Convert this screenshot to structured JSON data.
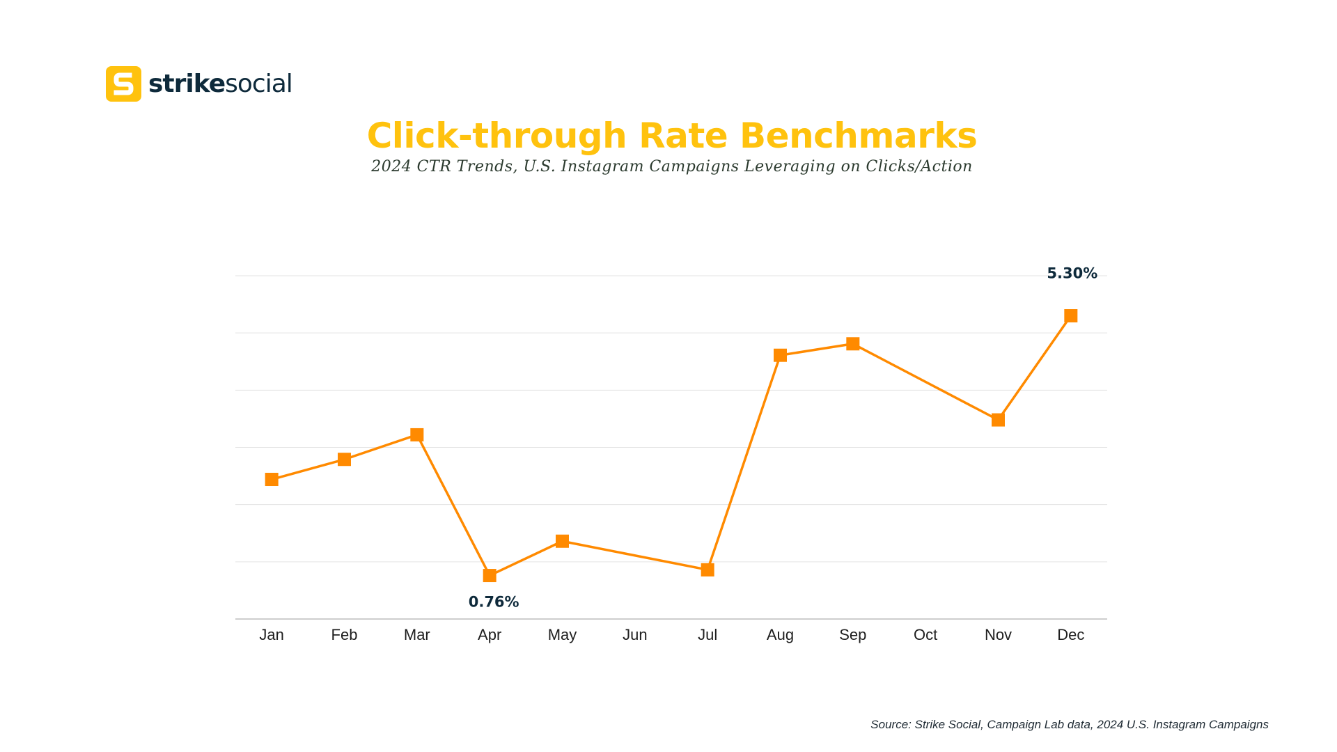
{
  "brand": {
    "name_bold": "strike",
    "name_light": "social",
    "accent_color": "#FFC20E",
    "text_color": "#0E2A3B"
  },
  "header": {
    "title": "Click-through Rate Benchmarks",
    "subtitle": "2024 CTR Trends, U.S. Instagram Campaigns Leveraging on Clicks/Action"
  },
  "chart_data": {
    "type": "line",
    "categories": [
      "Jan",
      "Feb",
      "Mar",
      "Apr",
      "May",
      "Jun",
      "Jul",
      "Aug",
      "Sep",
      "Oct",
      "Nov",
      "Dec"
    ],
    "points": [
      {
        "x": "Jan",
        "y": 2.44
      },
      {
        "x": "Feb",
        "y": 2.79
      },
      {
        "x": "Mar",
        "y": 3.22
      },
      {
        "x": "Apr",
        "y": 0.76
      },
      {
        "x": "May",
        "y": 1.36
      },
      {
        "x": "Jul",
        "y": 0.86
      },
      {
        "x": "Aug",
        "y": 4.61
      },
      {
        "x": "Sep",
        "y": 4.81
      },
      {
        "x": "Nov",
        "y": 3.48
      },
      {
        "x": "Dec",
        "y": 5.3
      }
    ],
    "annotations": [
      {
        "x": "Apr",
        "label": "0.76%",
        "position": "below"
      },
      {
        "x": "Dec",
        "label": "5.30%",
        "position": "above"
      }
    ],
    "ylim": [
      0,
      6
    ],
    "y_gridlines": [
      1,
      2,
      3,
      4,
      5,
      6
    ],
    "grid": true,
    "line_color": "#FF8A00",
    "xlabel": "",
    "ylabel": ""
  },
  "footer": {
    "source": "Source: Strike Social, Campaign Lab data, 2024 U.S. Instagram Campaigns"
  }
}
